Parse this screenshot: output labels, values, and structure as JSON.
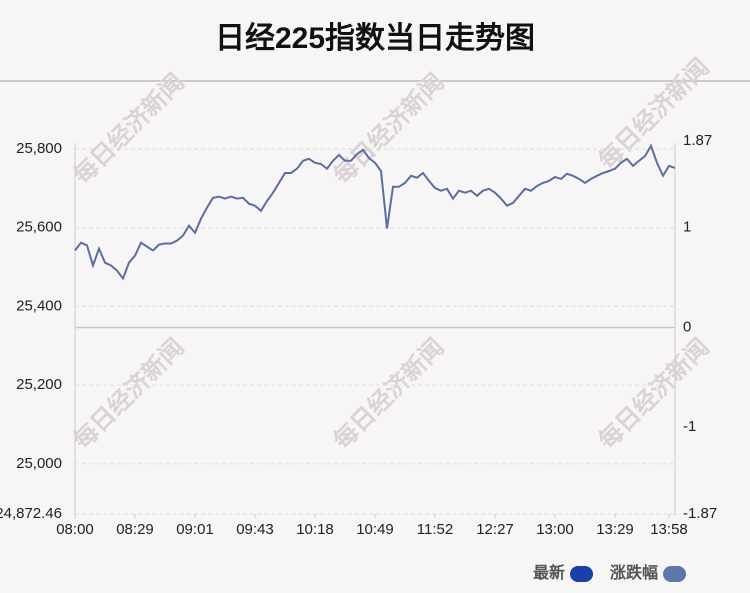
{
  "chart_data": {
    "type": "line",
    "title": "日经225指数当日走势图",
    "watermark": "每日经济新闻",
    "series": [
      {
        "name": "最新",
        "color": "#5a6f9e",
        "values": [
          25542,
          25562,
          25555,
          25504,
          25547,
          25511,
          25504,
          25491,
          25471,
          25511,
          25529,
          25562,
          25552,
          25542,
          25557,
          25560,
          25560,
          25567,
          25580,
          25605,
          25587,
          25623,
          25651,
          25676,
          25679,
          25674,
          25679,
          25674,
          25676,
          25661,
          25656,
          25643,
          25668,
          25689,
          25714,
          25739,
          25739,
          25750,
          25770,
          25775,
          25765,
          25762,
          25750,
          25770,
          25785,
          25770,
          25770,
          25787,
          25798,
          25777,
          25765,
          25744,
          25598,
          25704,
          25704,
          25714,
          25732,
          25727,
          25739,
          25719,
          25701,
          25694,
          25699,
          25674,
          25694,
          25689,
          25694,
          25681,
          25694,
          25699,
          25689,
          25674,
          25656,
          25663,
          25681,
          25699,
          25694,
          25706,
          25714,
          25719,
          25729,
          25724,
          25737,
          25732,
          25724,
          25714,
          25724,
          25732,
          25739,
          25744,
          25750,
          25765,
          25775,
          25757,
          25770,
          25782,
          25808,
          25765,
          25732,
          25757,
          25752
        ]
      }
    ],
    "legend": [
      {
        "name": "最新",
        "color": "#1a3fa8"
      },
      {
        "name": "涨跌幅",
        "color": "#5f77a8"
      }
    ],
    "xticks": [
      {
        "value": 0,
        "label": "08:00"
      },
      {
        "value": 10,
        "label": "08:29"
      },
      {
        "value": 20,
        "label": "09:01"
      },
      {
        "value": 30,
        "label": "09:43"
      },
      {
        "value": 40,
        "label": "10:18"
      },
      {
        "value": 50,
        "label": "10:49"
      },
      {
        "value": 60,
        "label": "11:52"
      },
      {
        "value": 70,
        "label": "12:27"
      },
      {
        "value": 80,
        "label": "13:00"
      },
      {
        "value": 90,
        "label": "13:29"
      },
      {
        "value": 99,
        "label": "13:58"
      }
    ],
    "ylim": [
      24872.46,
      25820.36
    ],
    "yticks": [
      {
        "value": 24872.46,
        "label": "24,872.46"
      },
      {
        "value": 25000,
        "label": "25,000"
      },
      {
        "value": 25200,
        "label": "25,200"
      },
      {
        "value": 25400,
        "label": "25,400"
      },
      {
        "value": 25600,
        "label": "25,600"
      },
      {
        "value": 25800,
        "label": "25,800"
      }
    ],
    "y2lim": [
      -1.87,
      1.87
    ],
    "y2ticks": [
      -1.87,
      -1,
      0,
      1,
      1.87
    ],
    "grid": true
  }
}
